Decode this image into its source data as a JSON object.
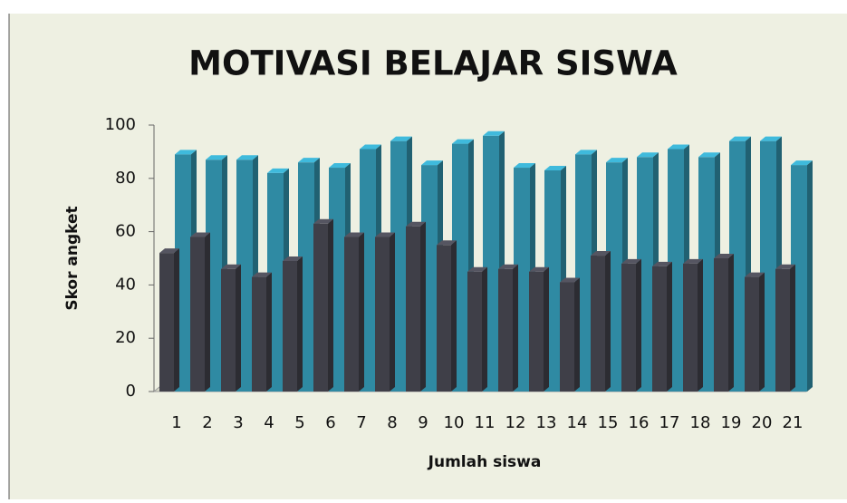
{
  "chart_data": {
    "type": "bar3d",
    "title": "MOTIVASI BELAJAR SISWA",
    "x_label": "Jumlah siswa",
    "y_label": "Skor angket",
    "categories": [
      "1",
      "2",
      "3",
      "4",
      "5",
      "6",
      "7",
      "8",
      "9",
      "10",
      "11",
      "12",
      "13",
      "14",
      "15",
      "16",
      "17",
      "18",
      "19",
      "20",
      "21"
    ],
    "series": [
      {
        "color": "#3f3f48",
        "values": [
          52,
          58,
          46,
          43,
          49,
          63,
          58,
          58,
          62,
          55,
          45,
          46,
          45,
          41,
          51,
          48,
          47,
          48,
          50,
          43,
          46
        ]
      },
      {
        "color": "#2f8aa3",
        "values": [
          89,
          87,
          87,
          82,
          86,
          84,
          91,
          94,
          85,
          93,
          96,
          84,
          83,
          89,
          86,
          88,
          91,
          88,
          94,
          94,
          85
        ]
      }
    ],
    "ylim": [
      0,
      100
    ],
    "yticks": [
      0,
      20,
      40,
      60,
      80,
      100
    ],
    "grid": false
  }
}
